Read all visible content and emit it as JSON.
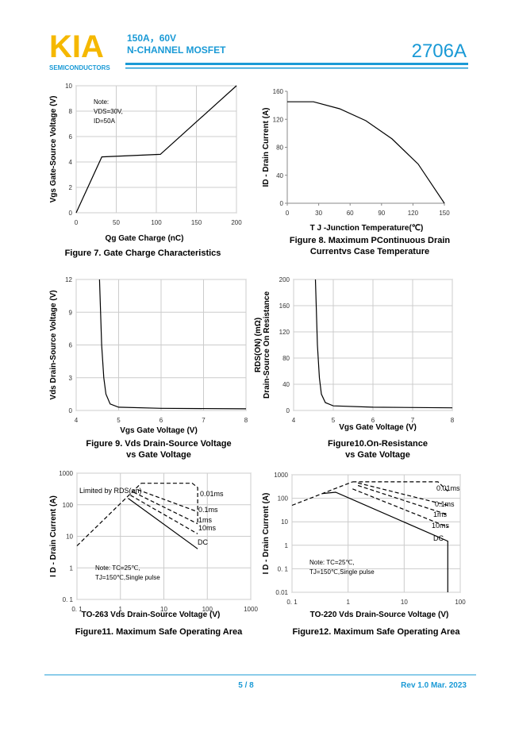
{
  "header": {
    "logo": "KIA",
    "company": "SEMICONDUCTORS",
    "rating": "150A，60V",
    "device_type": "N-CHANNEL MOSFET",
    "part_number": "2706A"
  },
  "chart_data": [
    {
      "type": "line",
      "xlabel": "Qg Gate Charge (nC)",
      "ylabel": "Vgs Gate-Source Voltage (V)",
      "caption": [
        "Figure 7. Gate Charge Characteristics"
      ],
      "note": [
        "Note:",
        "VDS=30V,",
        "ID=50A"
      ],
      "xlim": [
        0,
        200
      ],
      "xticks": [
        0,
        50,
        100,
        150,
        200
      ],
      "ylim": [
        0,
        10
      ],
      "yticks": [
        0,
        2,
        4,
        6,
        8,
        10
      ],
      "grid": true,
      "color": "#000000",
      "series": [
        {
          "x": [
            0,
            32,
            105,
            200
          ],
          "values": [
            0,
            4.4,
            4.6,
            10
          ]
        }
      ]
    },
    {
      "type": "line",
      "xlabel": "T J -Junction Temperature(℃)",
      "ylabel": "ID - Drain Current (A)",
      "caption": [
        "Figure 8.  Maximum  PContinuous Drain",
        "Currentvs Case Temperature"
      ],
      "xlim": [
        0,
        150
      ],
      "xticks": [
        0,
        30,
        60,
        90,
        120,
        150
      ],
      "ylim": [
        0,
        160
      ],
      "yticks": [
        0,
        40,
        80,
        120,
        160
      ],
      "grid": false,
      "color": "#000000",
      "series": [
        {
          "x": [
            0,
            25,
            50,
            75,
            100,
            125,
            150
          ],
          "values": [
            145,
            145,
            135,
            118,
            92,
            56,
            0
          ]
        }
      ]
    },
    {
      "type": "line",
      "xlabel": "Vgs Gate Voltage (V)",
      "ylabel": "Vds Drain-Source Voltage (V)",
      "caption": [
        "Figure 9.  Vds Drain-Source Voltage",
        "vs Gate Voltage"
      ],
      "xlim": [
        4,
        8
      ],
      "xticks": [
        4,
        5,
        6,
        7,
        8
      ],
      "ylim": [
        0,
        12
      ],
      "yticks": [
        0,
        3,
        6,
        9,
        12
      ],
      "grid": true,
      "color": "#000000",
      "series": [
        {
          "x": [
            4.55,
            4.6,
            4.65,
            4.7,
            4.8,
            5,
            6,
            8
          ],
          "values": [
            12,
            6,
            3,
            1.5,
            0.6,
            0.3,
            0.2,
            0.15
          ]
        }
      ]
    },
    {
      "type": "line",
      "xlabel": "Vgs Gate Voltage (V)",
      "ylabel": [
        "RDS(ON) (mΩ)",
        "Drain-Source On Resistance"
      ],
      "caption": [
        "Figure10.On-Resistance",
        "vs Gate Voltage"
      ],
      "xlim": [
        4,
        8
      ],
      "xticks": [
        4,
        5,
        6,
        7,
        8
      ],
      "ylim": [
        0,
        200
      ],
      "yticks": [
        0,
        40,
        80,
        120,
        160,
        200
      ],
      "grid": true,
      "color": "#000000",
      "series": [
        {
          "x": [
            4.55,
            4.6,
            4.65,
            4.7,
            4.8,
            5,
            6,
            8
          ],
          "values": [
            200,
            100,
            50,
            25,
            12,
            7,
            5,
            4
          ]
        }
      ]
    },
    {
      "type": "line",
      "xlabel": "TO-263 Vds Drain-Source Voltage (V)",
      "ylabel": "I D - Drain Current (A)",
      "caption": [
        "Figure11. Maximum Safe Operating Area"
      ],
      "note": [
        "Note: TC=25℃,",
        "TJ=150℃,Single pulse"
      ],
      "annotation": "Limited by RDS(on)",
      "xlog": true,
      "ylog": true,
      "xlim": [
        0.1,
        1000
      ],
      "xticks": [
        {
          "value": 0.1,
          "label": "0. 1"
        },
        1,
        10,
        100,
        1000
      ],
      "ylim": [
        0.1,
        1000
      ],
      "yticks": [
        {
          "value": 0.1,
          "label": "0. 1"
        },
        1,
        10,
        100,
        1000
      ],
      "grid": true,
      "color": "#000000",
      "series": [
        {
          "x": [
            0.1,
            3
          ],
          "values": [
            5,
            480
          ],
          "dashed": true
        },
        {
          "name": "0.01ms",
          "x": [
            3,
            45,
            60,
            60
          ],
          "values": [
            480,
            480,
            350,
            25
          ],
          "dashed": true
        },
        {
          "name": "0.1ms",
          "x": [
            2.5,
            60
          ],
          "values": [
            300,
            60
          ],
          "dashed": true
        },
        {
          "name": "1ms",
          "x": [
            2,
            60
          ],
          "values": [
            250,
            25
          ],
          "dashed": true
        },
        {
          "name": "10ms",
          "x": [
            1.7,
            60
          ],
          "values": [
            200,
            12
          ],
          "dashed": true
        },
        {
          "name": "DC",
          "x": [
            1.5,
            60
          ],
          "values": [
            160,
            4
          ],
          "dashed": false
        }
      ]
    },
    {
      "type": "line",
      "xlabel": "TO-220 Vds Drain-Source Voltage (V)",
      "ylabel": "I D - Drain Current (A)",
      "caption": [
        "Figure12. Maximum Safe Operating Area"
      ],
      "note": [
        "Note: TC=25℃,",
        "TJ=150℃,Single pulse"
      ],
      "xlog": true,
      "ylog": true,
      "xlim": [
        0.1,
        100
      ],
      "xticks": [
        {
          "value": 0.1,
          "label": "0. 1"
        },
        1,
        10,
        100
      ],
      "ylim": [
        0.01,
        1000
      ],
      "yticks": [
        0.01,
        {
          "value": 0.1,
          "label": "0. 1"
        },
        1,
        10,
        100,
        1000
      ],
      "grid": true,
      "color": "#000000",
      "series": [
        {
          "x": [
            0.1,
            1.2
          ],
          "values": [
            50,
            500
          ],
          "dashed": true
        },
        {
          "name": "0.01ms",
          "x": [
            1.2,
            40,
            60
          ],
          "values": [
            500,
            500,
            200
          ],
          "dashed": true
        },
        {
          "name": "0.1ms",
          "x": [
            1.5,
            60
          ],
          "values": [
            450,
            50
          ],
          "dashed": true
        },
        {
          "name": "1ms",
          "x": [
            1.5,
            60
          ],
          "values": [
            350,
            20
          ],
          "dashed": true
        },
        {
          "name": "10ms",
          "x": [
            1.2,
            60
          ],
          "values": [
            250,
            6
          ],
          "dashed": true
        },
        {
          "name": "DC",
          "x": [
            0.35,
            0.6,
            60,
            60
          ],
          "values": [
            160,
            180,
            1.5,
            0.01
          ],
          "dashed": false
        }
      ]
    }
  ],
  "footer": {
    "page": "5 / 8",
    "revision": "Rev 1.0 Mar. 2023"
  }
}
